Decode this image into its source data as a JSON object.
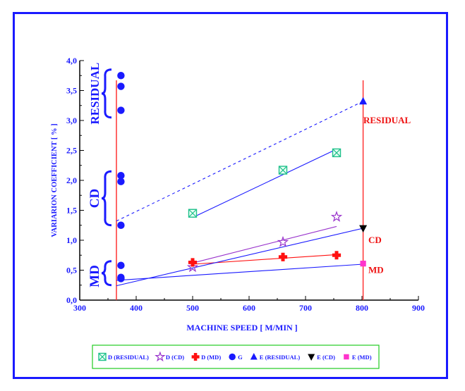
{
  "chart_data": {
    "type": "scatter",
    "xlabel": "MACHINE SPEED [ M/MIN ]",
    "ylabel": "VARIARION COEFFICIENT [ % ]",
    "xlim": [
      300,
      900
    ],
    "ylim": [
      0,
      4.0
    ],
    "x_ticks": [
      "300",
      "400",
      "500",
      "600",
      "700",
      "800",
      "900"
    ],
    "y_ticks": [
      "0,0",
      "0,5",
      "1,0",
      "1,5",
      "2,0",
      "2,5",
      "3,0",
      "3,5",
      "4,0"
    ],
    "grid": false,
    "legend_placement": "bottom",
    "vertical_lines": [
      365,
      802
    ],
    "side_labels": [
      {
        "text": "RESIDUAL",
        "center": 3.45
      },
      {
        "text": "CD",
        "center": 1.7
      },
      {
        "text": "MD",
        "center": 0.4
      }
    ],
    "right_labels": [
      {
        "text": "RESIDUAL",
        "y": 3.0
      },
      {
        "text": "CD",
        "y": 1.0
      },
      {
        "text": "MD",
        "y": 0.5
      }
    ],
    "series": [
      {
        "name": "D (RESIDUAL)",
        "marker": "boxx",
        "color": "#1fc08a",
        "x": [
          500,
          660,
          755
        ],
        "y": [
          1.45,
          2.17,
          2.46
        ]
      },
      {
        "name": "D (CD)",
        "marker": "star",
        "color": "#9933cc",
        "x": [
          500,
          660,
          755
        ],
        "y": [
          0.55,
          0.97,
          1.39
        ]
      },
      {
        "name": "D (MD)",
        "marker": "cross",
        "color": "#ff1111",
        "x": [
          500,
          660,
          755
        ],
        "y": [
          0.63,
          0.72,
          0.75
        ]
      },
      {
        "name": "G",
        "marker": "circle",
        "color": "#1a1aff",
        "x": [
          373,
          373,
          373,
          373,
          373,
          373,
          373,
          373,
          373
        ],
        "y": [
          3.75,
          3.57,
          3.17,
          2.08,
          1.98,
          1.25,
          0.58,
          0.38,
          0.36
        ]
      },
      {
        "name": "E (RESIDUAL)",
        "marker": "triangle-up",
        "color": "#1a1aff",
        "x": [
          802
        ],
        "y": [
          3.32
        ]
      },
      {
        "name": "E (CD)",
        "marker": "triangle-down",
        "color": "#000000",
        "x": [
          802
        ],
        "y": [
          1.2
        ]
      },
      {
        "name": "E (MD)",
        "marker": "square",
        "color": "#ff33cc",
        "x": [
          802
        ],
        "y": [
          0.61
        ]
      }
    ],
    "lines": [
      {
        "from": [
          365,
          1.32
        ],
        "to": [
          802,
          3.32
        ],
        "color": "#1a1aff",
        "dashed": true
      },
      {
        "from": [
          500,
          1.38
        ],
        "to": [
          755,
          2.52
        ],
        "color": "#1a1aff",
        "dashed": false
      },
      {
        "from": [
          500,
          0.62
        ],
        "to": [
          755,
          1.23
        ],
        "color": "#9933cc",
        "dashed": false
      },
      {
        "from": [
          500,
          0.6
        ],
        "to": [
          755,
          0.76
        ],
        "color": "#ff1111",
        "dashed": false
      },
      {
        "from": [
          365,
          0.24
        ],
        "to": [
          802,
          1.2
        ],
        "color": "#1a1aff",
        "dashed": false
      },
      {
        "from": [
          365,
          0.33
        ],
        "to": [
          802,
          0.6
        ],
        "color": "#1a1aff",
        "dashed": false
      }
    ],
    "colors": {
      "frame": "#1a1aff",
      "axis": "#000000",
      "axis_text": "#1a1aff",
      "vline": "#ff3333",
      "right_label": "#ee1111",
      "legend_border": "#22cc22"
    }
  }
}
